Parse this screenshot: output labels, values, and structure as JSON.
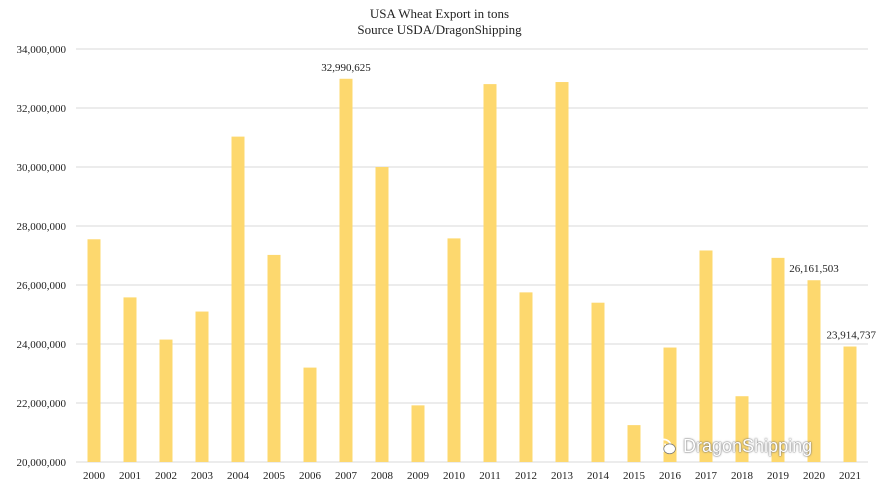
{
  "chart_data": {
    "type": "bar",
    "title": "USA Wheat Export in tons",
    "subtitle": "Source USDA/DragonShipping",
    "xlabel": "",
    "ylabel": "",
    "ylim": [
      20000000,
      34000000
    ],
    "yticks": [
      20000000,
      22000000,
      24000000,
      26000000,
      28000000,
      30000000,
      32000000,
      34000000
    ],
    "ytick_labels": [
      "20,000,000",
      "22,000,000",
      "24,000,000",
      "26,000,000",
      "28,000,000",
      "30,000,000",
      "32,000,000",
      "34,000,000"
    ],
    "grid": true,
    "legend": "none",
    "bar_color": "#FDD86E",
    "grid_color": "#D9D9D9",
    "categories": [
      "2000",
      "2001",
      "2002",
      "2003",
      "2004",
      "2005",
      "2006",
      "2007",
      "2008",
      "2009",
      "2010",
      "2011",
      "2012",
      "2013",
      "2014",
      "2015",
      "2016",
      "2017",
      "2018",
      "2019",
      "2020",
      "2021"
    ],
    "values": [
      27550000,
      25580000,
      24150000,
      25100000,
      31030000,
      27020000,
      23200000,
      32990625,
      30000000,
      21920000,
      27580000,
      32810000,
      25750000,
      32880000,
      25400000,
      21250000,
      23880000,
      27170000,
      22230000,
      26920000,
      26161503,
      23914737
    ],
    "data_labels": [
      {
        "index": 7,
        "text": "32,990,625"
      },
      {
        "index": 20,
        "text": "26,161,503"
      },
      {
        "index": 21,
        "text": "23,914,737"
      }
    ]
  },
  "watermark": {
    "icon": "wechat-icon",
    "text": "DragonShipping"
  }
}
